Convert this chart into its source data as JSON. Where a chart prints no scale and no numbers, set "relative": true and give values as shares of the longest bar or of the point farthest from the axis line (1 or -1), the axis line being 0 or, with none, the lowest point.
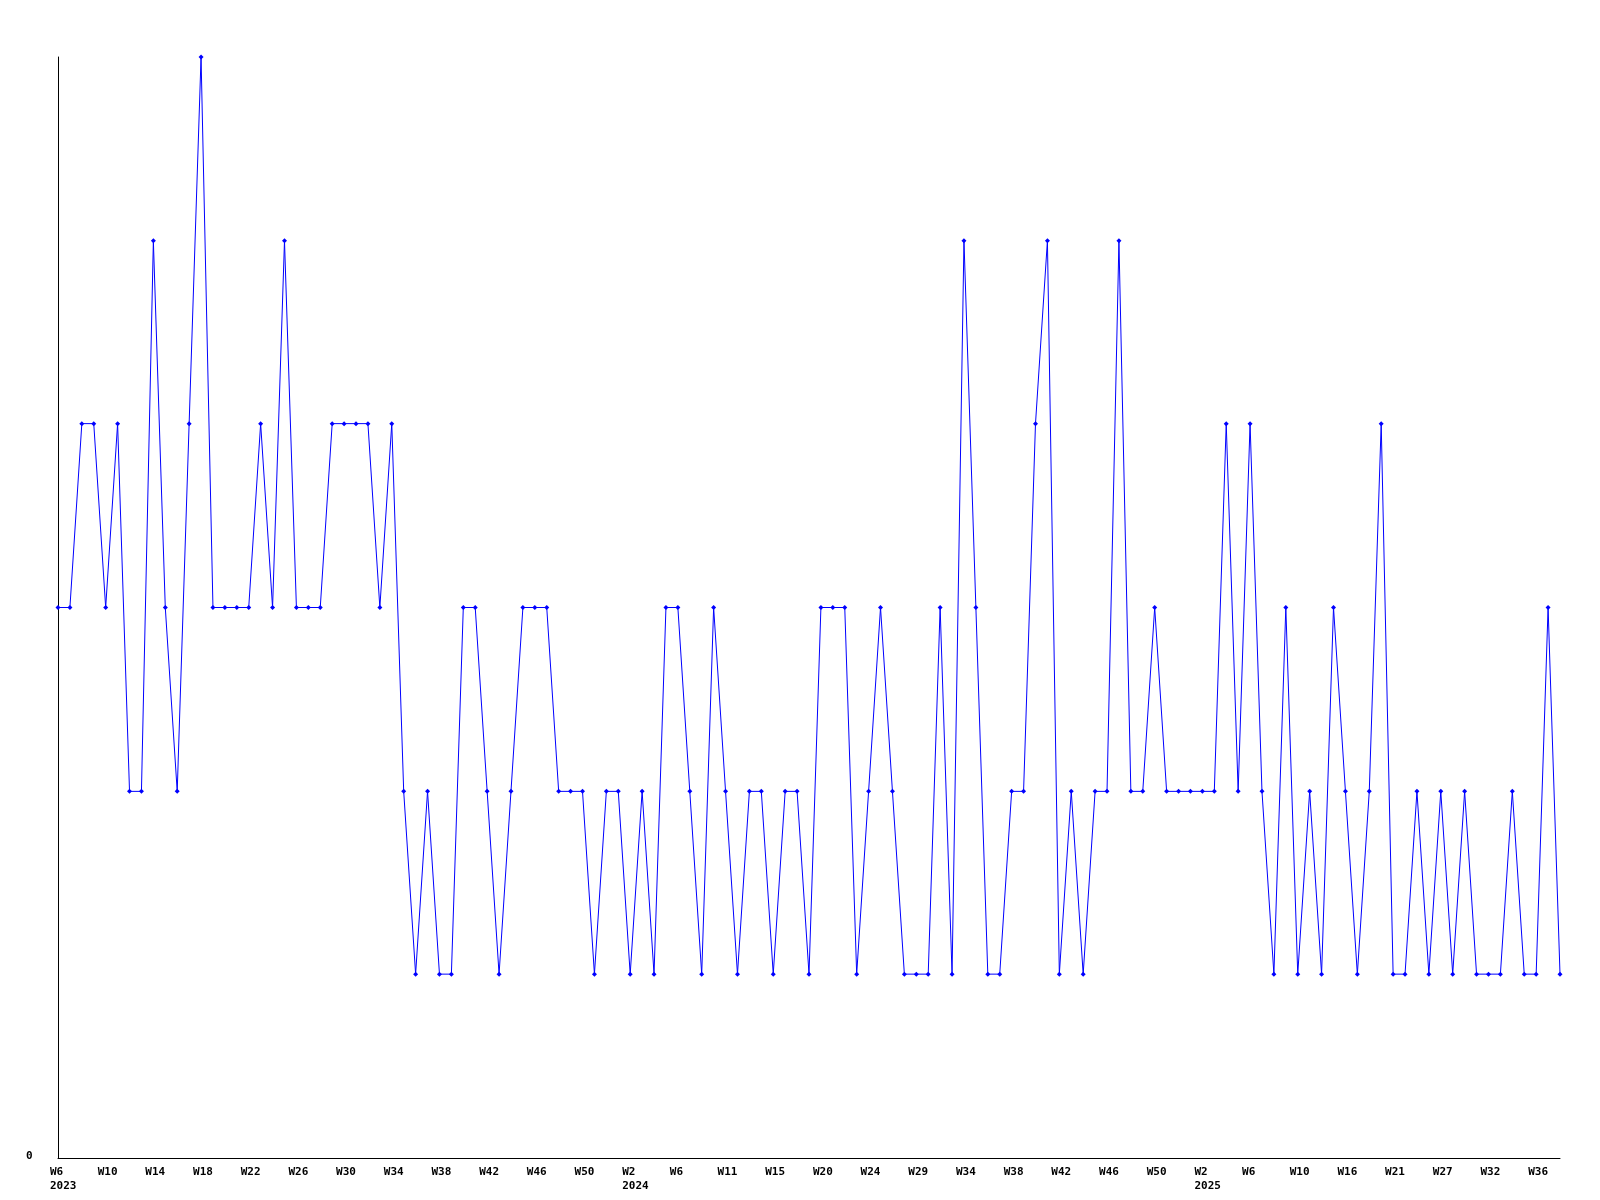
{
  "chart_data": {
    "type": "line",
    "relative": true,
    "marker": "diamond",
    "annotations": [
      "0"
    ],
    "categories": [
      "W6\n2023",
      null,
      null,
      null,
      "W10",
      null,
      null,
      null,
      "W14",
      null,
      null,
      null,
      "W18",
      null,
      null,
      null,
      "W22",
      null,
      null,
      null,
      "W26",
      null,
      null,
      null,
      "W30",
      null,
      null,
      null,
      "W34",
      null,
      null,
      null,
      "W38",
      null,
      null,
      null,
      "W42",
      null,
      null,
      null,
      "W46",
      null,
      null,
      null,
      "W50",
      null,
      null,
      null,
      "W2\n2024",
      null,
      null,
      null,
      "W6",
      null,
      null,
      null,
      "W11",
      null,
      null,
      null,
      "W15",
      null,
      null,
      null,
      "W20",
      null,
      null,
      null,
      "W24",
      null,
      null,
      null,
      "W29",
      null,
      null,
      null,
      "W34",
      null,
      null,
      null,
      "W38",
      null,
      null,
      null,
      "W42",
      null,
      null,
      null,
      "W46",
      null,
      null,
      null,
      "W50",
      null,
      null,
      null,
      "W2\n2025",
      null,
      null,
      null,
      "W6",
      null,
      null,
      null,
      "W10",
      null,
      null,
      null,
      "W16",
      null,
      null,
      null,
      "W21",
      null,
      null,
      null,
      "W27",
      null,
      null,
      null,
      "W32",
      null,
      null,
      null,
      "W36",
      null,
      null
    ],
    "series": [
      {
        "color": "#0000ff",
        "values": [
          0.5,
          0.5,
          0.667,
          0.667,
          0.5,
          0.667,
          0.333,
          0.333,
          0.833,
          0.5,
          0.333,
          0.667,
          1,
          0.5,
          0.5,
          0.5,
          0.5,
          0.667,
          0.5,
          0.833,
          0.5,
          0.5,
          0.5,
          0.667,
          0.667,
          0.667,
          0.667,
          0.5,
          0.667,
          0.333,
          0.167,
          0.333,
          0.167,
          0.167,
          0.5,
          0.5,
          0.333,
          0.167,
          0.333,
          0.5,
          0.5,
          0.5,
          0.333,
          0.333,
          0.333,
          0.167,
          0.333,
          0.333,
          0.167,
          0.333,
          0.167,
          0.5,
          0.5,
          0.333,
          0.167,
          0.5,
          0.333,
          0.167,
          0.333,
          0.333,
          0.167,
          0.333,
          0.333,
          0.167,
          0.5,
          0.5,
          0.5,
          0.167,
          0.333,
          0.5,
          0.333,
          0.167,
          0.167,
          0.167,
          0.5,
          0.167,
          0.833,
          0.5,
          0.167,
          0.167,
          0.333,
          0.333,
          0.667,
          0.833,
          0.167,
          0.333,
          0.167,
          0.333,
          0.333,
          0.833,
          0.333,
          0.333,
          0.5,
          0.333,
          0.333,
          0.333,
          0.333,
          0.333,
          0.667,
          0.333,
          0.667,
          0.333,
          0.167,
          0.5,
          0.167,
          0.333,
          0.167,
          0.5,
          0.333,
          0.167,
          0.333,
          0.667,
          0.167,
          0.167,
          0.333,
          0.167,
          0.333,
          0.167,
          0.333,
          0.167,
          0.167,
          0.167,
          0.333,
          0.167,
          0.167,
          0.5,
          0.167
        ]
      }
    ]
  }
}
